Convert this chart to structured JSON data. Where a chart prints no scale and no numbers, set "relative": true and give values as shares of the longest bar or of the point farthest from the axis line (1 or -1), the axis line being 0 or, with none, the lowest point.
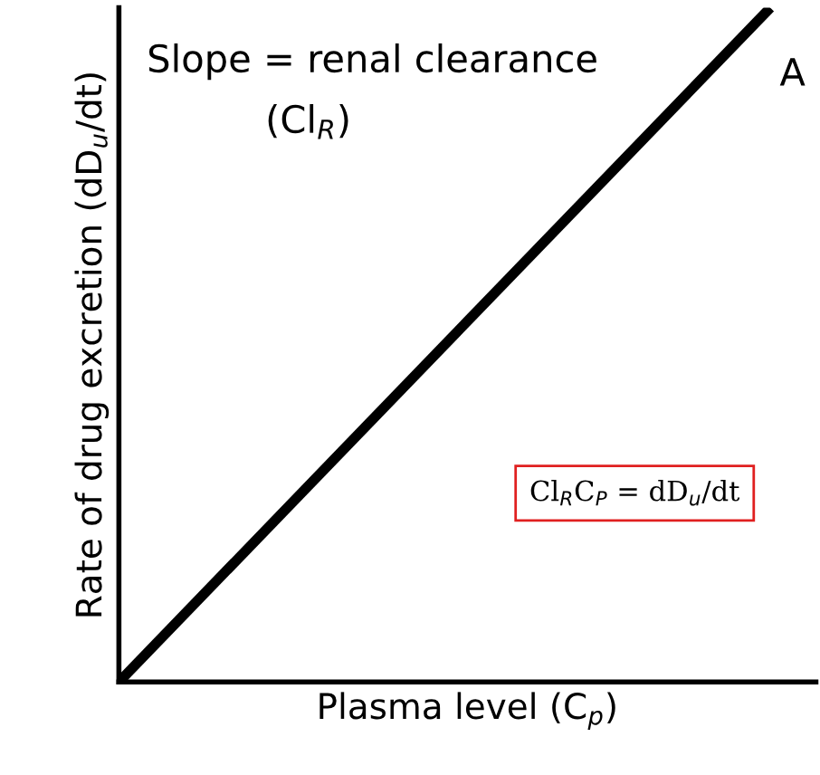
{
  "chart_data": {
    "type": "line",
    "relative": true,
    "xlabel": "Plasma level (C$_{p}$)",
    "ylabel": "Rate of drug excretion (dD$_{u}$/dt)",
    "categories": [
      null,
      null
    ],
    "series": [
      {
        "color": "#000000",
        "values": [
          0,
          1
        ]
      }
    ],
    "annotations": [
      "Slope = renal clearance",
      "(Cl$_{R}$)",
      "A",
      "Cl$_{R}$C$_{P}$ = dD$_{u}$/dt"
    ],
    "legend": false,
    "marker": "none",
    "line_style": "solid"
  }
}
